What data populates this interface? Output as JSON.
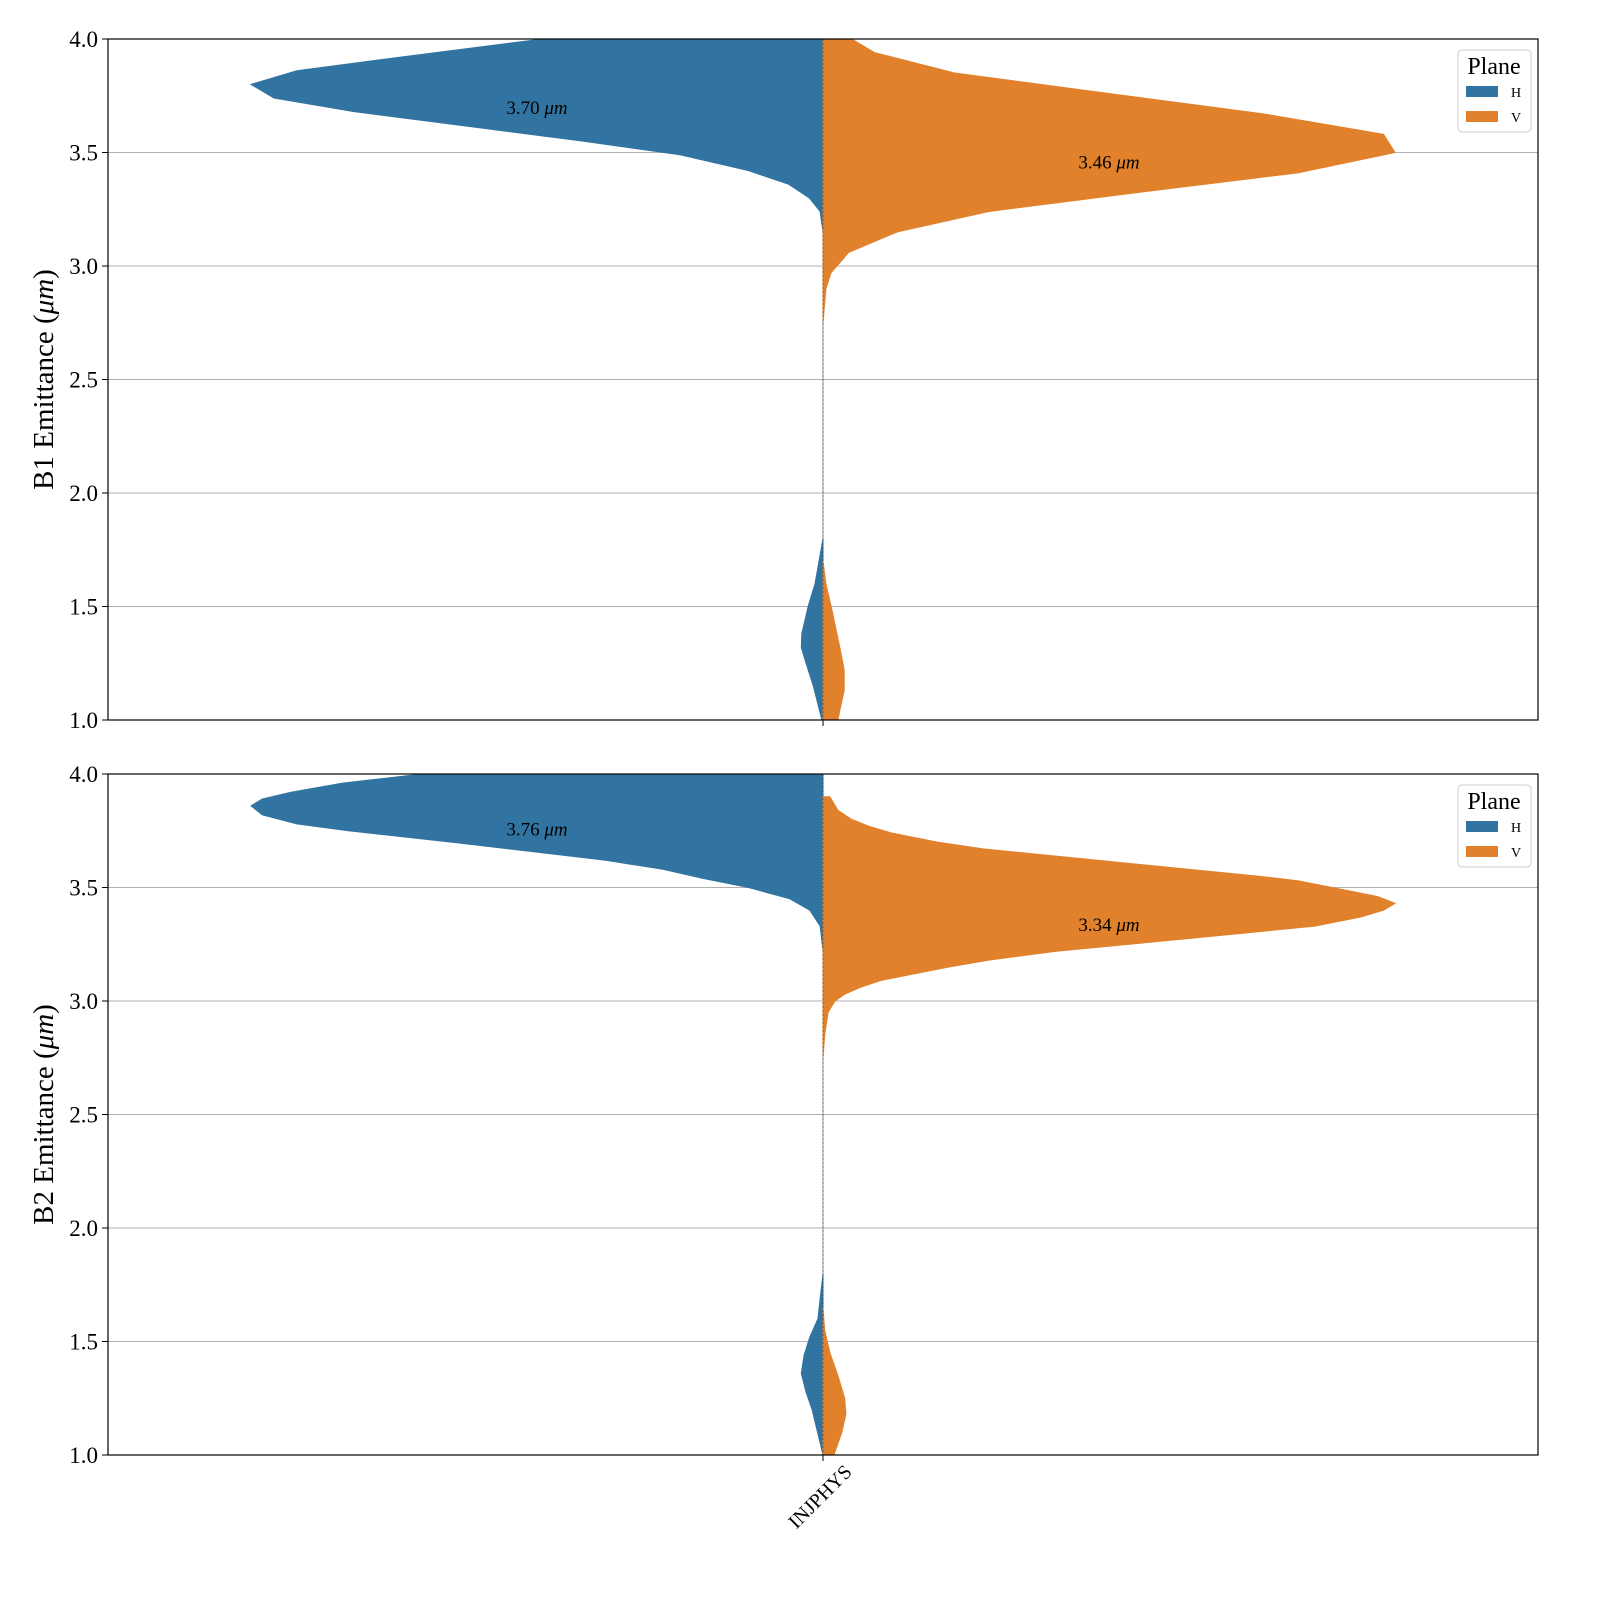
{
  "chart_data": {
    "type": "violin",
    "split": true,
    "categories": [
      "INJPHYS"
    ],
    "density_units": "percent of maximum half-width",
    "legend": {
      "title": "Plane",
      "entries": [
        "H",
        "V"
      ],
      "placement": "top-right"
    },
    "colors": {
      "H": "#3274a1",
      "V": "#e1812c"
    },
    "grid": "y",
    "panels": [
      {
        "ylabel": "B1 Emittance (μm)",
        "ylim": [
          1.0,
          4.0
        ],
        "yticks": [
          "1.0",
          "1.5",
          "2.0",
          "2.5",
          "3.0",
          "3.5",
          "4.0"
        ],
        "annotations": [
          {
            "text": "3.70 μm",
            "series": "H",
            "y": 3.7
          },
          {
            "text": "3.46 μm",
            "series": "V",
            "y": 3.46
          }
        ],
        "series": [
          {
            "name": "H",
            "side": "left",
            "profiles": [
              [
                [
                  4.0,
                  49
                ],
                [
                  3.92,
                  74
                ],
                [
                  3.86,
                  92
                ],
                [
                  3.8,
                  100
                ],
                [
                  3.74,
                  96
                ],
                [
                  3.68,
                  82
                ],
                [
                  3.55,
                  42
                ],
                [
                  3.49,
                  25
                ],
                [
                  3.42,
                  13
                ],
                [
                  3.36,
                  6
                ],
                [
                  3.3,
                  2.4
                ],
                [
                  3.24,
                  0.5
                ],
                [
                  3.15,
                  0
                ]
              ],
              [
                [
                  1.8,
                  0
                ],
                [
                  1.6,
                  1.4
                ],
                [
                  1.5,
                  2.6
                ],
                [
                  1.38,
                  3.7
                ],
                [
                  1.32,
                  3.8
                ],
                [
                  1.26,
                  3.1
                ],
                [
                  1.15,
                  1.7
                ],
                [
                  1.0,
                  0.2
                ]
              ]
            ]
          },
          {
            "name": "V",
            "side": "right",
            "profiles": [
              [
                [
                  4.0,
                  5
                ],
                [
                  3.94,
                  9
                ],
                [
                  3.85,
                  23
                ],
                [
                  3.77,
                  47
                ],
                [
                  3.67,
                  77
                ],
                [
                  3.58,
                  98
                ],
                [
                  3.5,
                  100
                ],
                [
                  3.41,
                  83
                ],
                [
                  3.33,
                  57
                ],
                [
                  3.24,
                  29
                ],
                [
                  3.15,
                  13
                ],
                [
                  3.06,
                  4.5
                ],
                [
                  2.97,
                  1.4
                ],
                [
                  2.9,
                  0.5
                ],
                [
                  2.75,
                  0
                ]
              ],
              [
                [
                  1.7,
                  0
                ],
                [
                  1.6,
                  0.5
                ],
                [
                  1.48,
                  1.6
                ],
                [
                  1.3,
                  3.1
                ],
                [
                  1.22,
                  3.7
                ],
                [
                  1.13,
                  3.7
                ],
                [
                  1.05,
                  3
                ],
                [
                  1.0,
                  2.6
                ]
              ]
            ]
          }
        ]
      },
      {
        "ylabel": "B2 Emittance (μm)",
        "ylim": [
          1.0,
          4.0
        ],
        "yticks": [
          "1.0",
          "1.5",
          "2.0",
          "2.5",
          "3.0",
          "3.5",
          "4.0"
        ],
        "annotations": [
          {
            "text": "3.76 μm",
            "series": "H",
            "y": 3.76
          },
          {
            "text": "3.34 μm",
            "series": "V",
            "y": 3.34
          }
        ],
        "series": [
          {
            "name": "H",
            "side": "left",
            "profiles": [
              [
                [
                  4.0,
                  70
                ],
                [
                  3.96,
                  84
                ],
                [
                  3.92,
                  93
                ],
                [
                  3.89,
                  98
                ],
                [
                  3.86,
                  100
                ],
                [
                  3.82,
                  98
                ],
                [
                  3.78,
                  92
                ],
                [
                  3.75,
                  83
                ],
                [
                  3.7,
                  65
                ],
                [
                  3.62,
                  38
                ],
                [
                  3.58,
                  28
                ],
                [
                  3.54,
                  21
                ],
                [
                  3.5,
                  13
                ],
                [
                  3.45,
                  5.8
                ],
                [
                  3.4,
                  2.3
                ],
                [
                  3.33,
                  0.5
                ],
                [
                  3.22,
                  0
                ]
              ],
              [
                [
                  1.8,
                  0
                ],
                [
                  1.6,
                  0.9
                ],
                [
                  1.52,
                  2.3
                ],
                [
                  1.44,
                  3.3
                ],
                [
                  1.36,
                  3.8
                ],
                [
                  1.28,
                  3
                ],
                [
                  1.2,
                  1.9
                ],
                [
                  1.0,
                  0
                ]
              ]
            ]
          },
          {
            "name": "V",
            "side": "right",
            "profiles": [
              [
                [
                  3.9,
                  1.2
                ],
                [
                  3.84,
                  2.6
                ],
                [
                  3.8,
                  5
                ],
                [
                  3.77,
                  8
                ],
                [
                  3.74,
                  12
                ],
                [
                  3.7,
                  20
                ],
                [
                  3.67,
                  28
                ],
                [
                  3.62,
                  48
                ],
                [
                  3.55,
                  76
                ],
                [
                  3.53,
                  83
                ],
                [
                  3.49,
                  91
                ],
                [
                  3.46,
                  97
                ],
                [
                  3.43,
                  100
                ],
                [
                  3.4,
                  98
                ],
                [
                  3.37,
                  94
                ],
                [
                  3.33,
                  86
                ],
                [
                  3.28,
                  66
                ],
                [
                  3.22,
                  41
                ],
                [
                  3.18,
                  29
                ],
                [
                  3.15,
                  22
                ],
                [
                  3.12,
                  16
                ],
                [
                  3.09,
                  10
                ],
                [
                  3.06,
                  6.5
                ],
                [
                  3.03,
                  3.8
                ],
                [
                  3.0,
                  2.1
                ],
                [
                  2.95,
                  0.9
                ],
                [
                  2.85,
                  0.3
                ],
                [
                  2.75,
                  0
                ]
              ],
              [
                [
                  1.65,
                  0
                ],
                [
                  1.55,
                  0.3
                ],
                [
                  1.45,
                  1.2
                ],
                [
                  1.35,
                  2.6
                ],
                [
                  1.25,
                  3.8
                ],
                [
                  1.18,
                  4
                ],
                [
                  1.1,
                  3.3
                ],
                [
                  1.0,
                  1.9
                ]
              ]
            ]
          }
        ]
      }
    ]
  }
}
